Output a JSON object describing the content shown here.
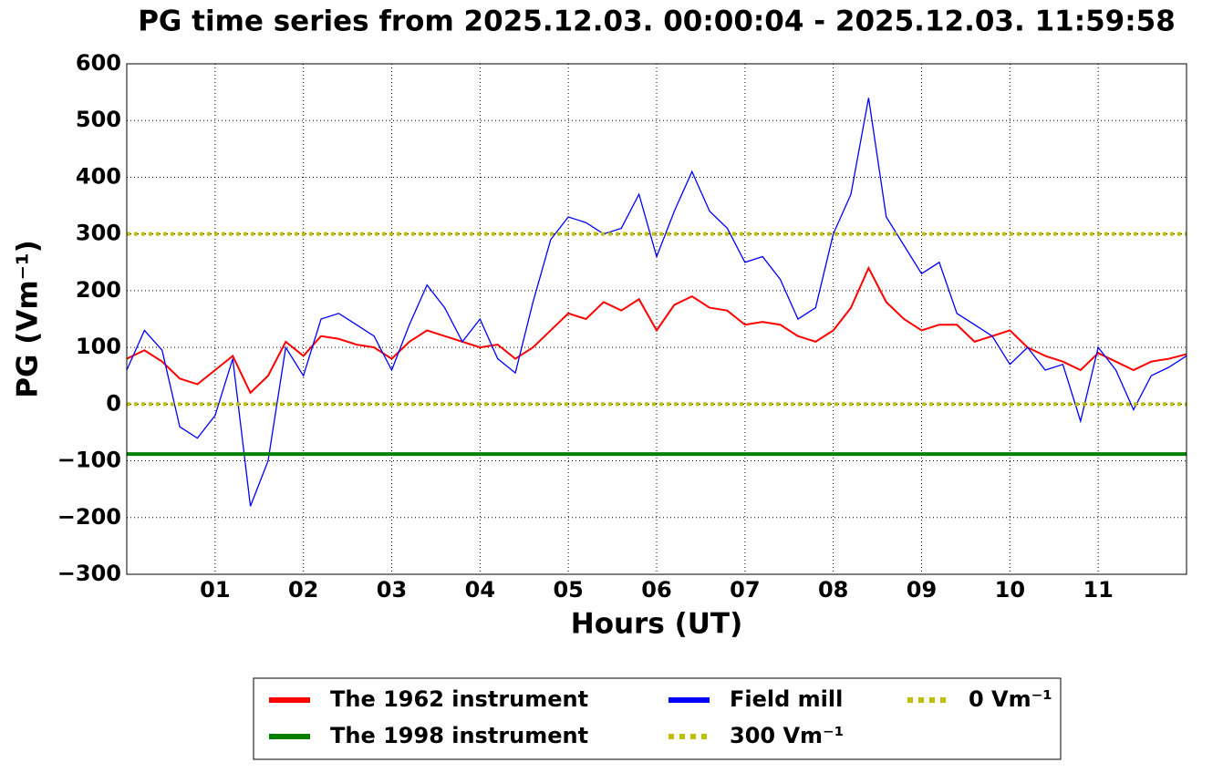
{
  "chart_data": {
    "type": "line",
    "title": "PG time series from 2025.12.03. 00:00:04 - 2025.12.03. 11:59:58",
    "x_label": "Hours (UT)",
    "y_label": "PG (Vm⁻¹)",
    "x": [
      0,
      0.2,
      0.4,
      0.6,
      0.8,
      1,
      1.2,
      1.4,
      1.6,
      1.8,
      2,
      2.2,
      2.4,
      2.6,
      2.8,
      3,
      3.2,
      3.4,
      3.6,
      3.8,
      4,
      4.2,
      4.4,
      4.6,
      4.8,
      5,
      5.2,
      5.4,
      5.6,
      5.8,
      6,
      6.2,
      6.4,
      6.6,
      6.8,
      7,
      7.2,
      7.4,
      7.6,
      7.8,
      8,
      8.2,
      8.4,
      8.6,
      8.8,
      9,
      9.2,
      9.4,
      9.6,
      9.8,
      10,
      10.2,
      10.4,
      10.6,
      10.8,
      11,
      11.2,
      11.4,
      11.6,
      11.8,
      12
    ],
    "series": [
      {
        "name": "The 1962 instrument",
        "color": "#ff0000",
        "values": [
          80,
          95,
          75,
          45,
          35,
          60,
          85,
          20,
          50,
          110,
          85,
          120,
          115,
          105,
          100,
          80,
          110,
          130,
          120,
          110,
          100,
          105,
          80,
          100,
          130,
          160,
          150,
          180,
          165,
          185,
          130,
          175,
          190,
          170,
          165,
          140,
          145,
          140,
          120,
          110,
          130,
          170,
          240,
          180,
          150,
          130,
          140,
          140,
          110,
          120,
          130,
          100,
          85,
          75,
          60,
          90,
          75,
          60,
          75,
          80,
          88
        ]
      },
      {
        "name": "Field mill",
        "color": "#0000ff",
        "values": [
          60,
          130,
          95,
          -40,
          -60,
          -20,
          80,
          -180,
          -100,
          100,
          50,
          150,
          160,
          140,
          120,
          60,
          140,
          210,
          170,
          110,
          150,
          80,
          55,
          180,
          290,
          330,
          320,
          300,
          310,
          370,
          260,
          340,
          410,
          340,
          310,
          250,
          260,
          220,
          150,
          170,
          300,
          370,
          540,
          330,
          280,
          230,
          250,
          160,
          140,
          120,
          70,
          100,
          60,
          70,
          -30,
          100,
          60,
          -10,
          50,
          65,
          85
        ]
      }
    ],
    "hlines": [
      {
        "name": "The 1998 instrument",
        "color": "#008000",
        "value": -88,
        "style": "solid"
      },
      {
        "name": "300 Vm⁻¹",
        "color": "#bfbf00",
        "value": 300,
        "style": "dotted"
      },
      {
        "name": "0 Vm⁻¹",
        "color": "#bfbf00",
        "value": 0,
        "style": "dotted"
      }
    ],
    "xlim": [
      0,
      12
    ],
    "xticks": [
      {
        "value": 1,
        "label": "01"
      },
      {
        "value": 2,
        "label": "02"
      },
      {
        "value": 3,
        "label": "03"
      },
      {
        "value": 4,
        "label": "04"
      },
      {
        "value": 5,
        "label": "05"
      },
      {
        "value": 6,
        "label": "06"
      },
      {
        "value": 7,
        "label": "07"
      },
      {
        "value": 8,
        "label": "08"
      },
      {
        "value": 9,
        "label": "09"
      },
      {
        "value": 10,
        "label": "10"
      },
      {
        "value": 11,
        "label": "11"
      }
    ],
    "ylim": [
      -300,
      600
    ],
    "yticks": [
      {
        "value": -300,
        "label": "−300"
      },
      {
        "value": -200,
        "label": "−200"
      },
      {
        "value": -100,
        "label": "−100"
      },
      0,
      100,
      200,
      300,
      400,
      500,
      600
    ],
    "grid": true,
    "legend": "bottom"
  }
}
